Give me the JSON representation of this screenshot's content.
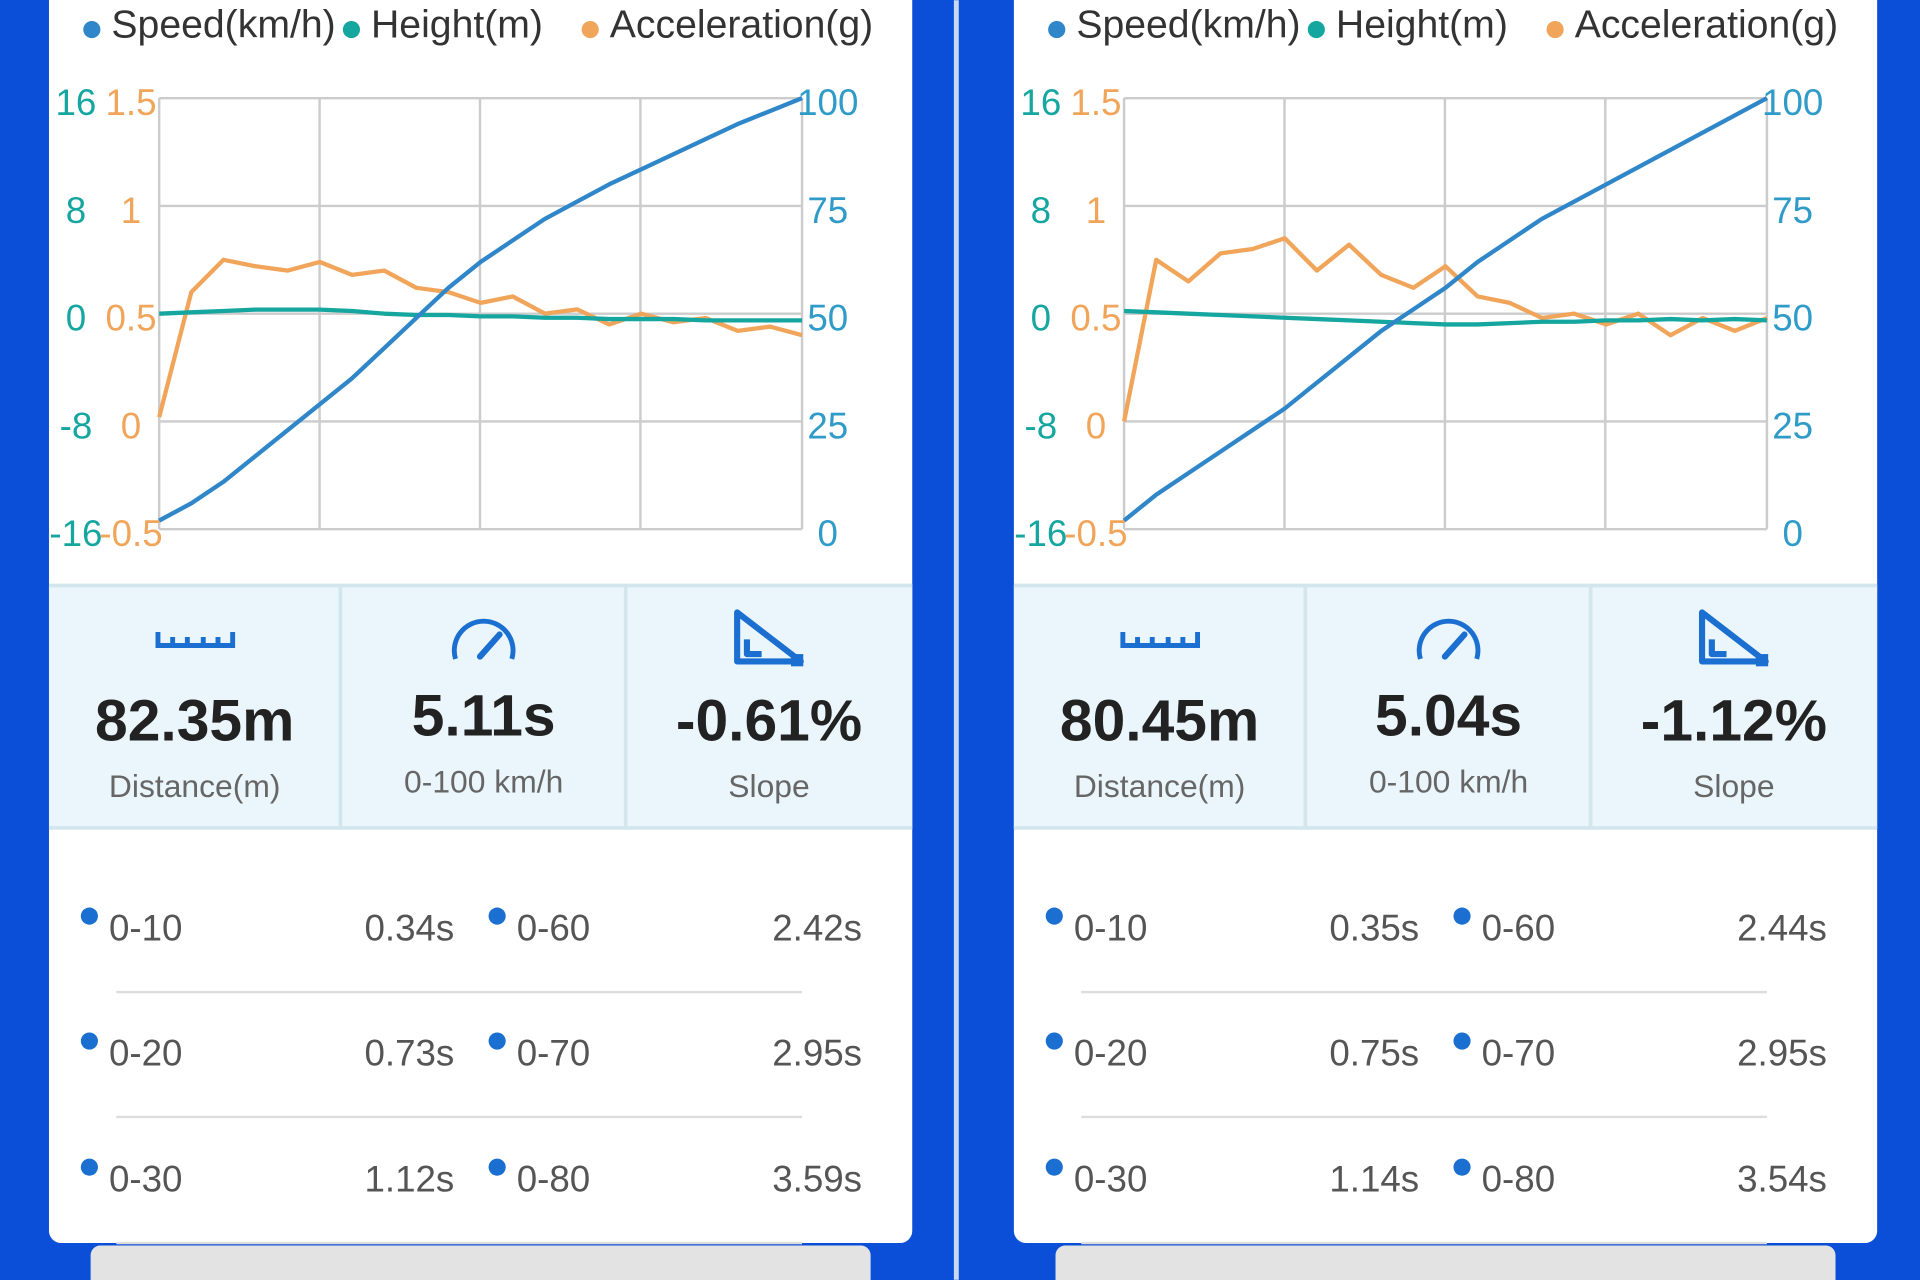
{
  "chart_data": [
    {
      "type": "line",
      "series": [
        {
          "name": "Speed(km/h)",
          "color": "#2f86c8",
          "axis": "y2",
          "values": [
            2,
            6,
            11,
            17,
            23,
            29,
            35,
            42,
            49,
            56,
            62,
            67,
            72,
            76,
            80,
            83.5,
            87,
            90.5,
            94,
            97,
            100
          ]
        },
        {
          "name": "Height(m)",
          "color": "#16a6a0",
          "axis": "y3",
          "values": [
            0,
            0.1,
            0.2,
            0.3,
            0.3,
            0.3,
            0.2,
            0,
            -0.1,
            -0.1,
            -0.2,
            -0.2,
            -0.3,
            -0.3,
            -0.4,
            -0.4,
            -0.4,
            -0.5,
            -0.5,
            -0.5,
            -0.5
          ]
        },
        {
          "name": "Acceleration(g)",
          "color": "#f0a55a",
          "values": [
            0.02,
            0.6,
            0.75,
            0.72,
            0.7,
            0.74,
            0.68,
            0.7,
            0.62,
            0.6,
            0.55,
            0.58,
            0.5,
            0.52,
            0.45,
            0.5,
            0.46,
            0.48,
            0.42,
            0.44,
            0.4
          ]
        }
      ],
      "ylim": [
        -0.5,
        1.5
      ],
      "yticks": [
        -0.5,
        0,
        0.5,
        1,
        1.5
      ],
      "y2lim": [
        0,
        100
      ],
      "y2ticks": [
        0,
        25,
        50,
        75,
        100
      ],
      "y3lim": [
        -16,
        16
      ],
      "y3ticks": [
        -16,
        -8,
        0,
        8,
        16
      ],
      "grid": true
    },
    {
      "type": "line",
      "series": [
        {
          "name": "Speed(km/h)",
          "color": "#2f86c8",
          "axis": "y2",
          "values": [
            2,
            8,
            13,
            18,
            23,
            28,
            34,
            40,
            46,
            51,
            56,
            62,
            67,
            72,
            76,
            80,
            84,
            88,
            92,
            96,
            100
          ]
        },
        {
          "name": "Height(m)",
          "color": "#16a6a0",
          "axis": "y3",
          "values": [
            0.2,
            0.1,
            0,
            -0.1,
            -0.2,
            -0.3,
            -0.4,
            -0.5,
            -0.6,
            -0.7,
            -0.8,
            -0.8,
            -0.7,
            -0.6,
            -0.6,
            -0.5,
            -0.5,
            -0.4,
            -0.5,
            -0.4,
            -0.5
          ]
        },
        {
          "name": "Acceleration(g)",
          "color": "#f0a55a",
          "values": [
            0,
            0.75,
            0.65,
            0.78,
            0.8,
            0.85,
            0.7,
            0.82,
            0.68,
            0.62,
            0.72,
            0.58,
            0.55,
            0.48,
            0.5,
            0.45,
            0.5,
            0.4,
            0.48,
            0.42,
            0.48
          ]
        }
      ],
      "ylim": [
        -0.5,
        1.5
      ],
      "yticks": [
        -0.5,
        0,
        0.5,
        1,
        1.5
      ],
      "y2lim": [
        0,
        100
      ],
      "y2ticks": [
        0,
        25,
        50,
        75,
        100
      ],
      "y3lim": [
        -16,
        16
      ],
      "y3ticks": [
        -16,
        -8,
        0,
        8,
        16
      ],
      "grid": true
    }
  ],
  "panels": [
    {
      "stats": [
        {
          "value": "82.35m",
          "label": "Distance(m)"
        },
        {
          "value": "5.11s",
          "label": "0-100 km/h"
        },
        {
          "value": "-0.61%",
          "label": "Slope"
        }
      ],
      "splits": [
        {
          "label": "0-10",
          "time": "0.34s"
        },
        {
          "label": "0-20",
          "time": "0.73s"
        },
        {
          "label": "0-30",
          "time": "1.12s"
        },
        {
          "label": "0-60",
          "time": "2.42s"
        },
        {
          "label": "0-70",
          "time": "2.95s"
        },
        {
          "label": "0-80",
          "time": "3.59s"
        }
      ]
    },
    {
      "stats": [
        {
          "value": "80.45m",
          "label": "Distance(m)"
        },
        {
          "value": "5.04s",
          "label": "0-100 km/h"
        },
        {
          "value": "-1.12%",
          "label": "Slope"
        }
      ],
      "splits": [
        {
          "label": "0-10",
          "time": "0.35s"
        },
        {
          "label": "0-20",
          "time": "0.75s"
        },
        {
          "label": "0-30",
          "time": "1.14s"
        },
        {
          "label": "0-60",
          "time": "2.44s"
        },
        {
          "label": "0-70",
          "time": "2.95s"
        },
        {
          "label": "0-80",
          "time": "3.54s"
        }
      ]
    }
  ]
}
